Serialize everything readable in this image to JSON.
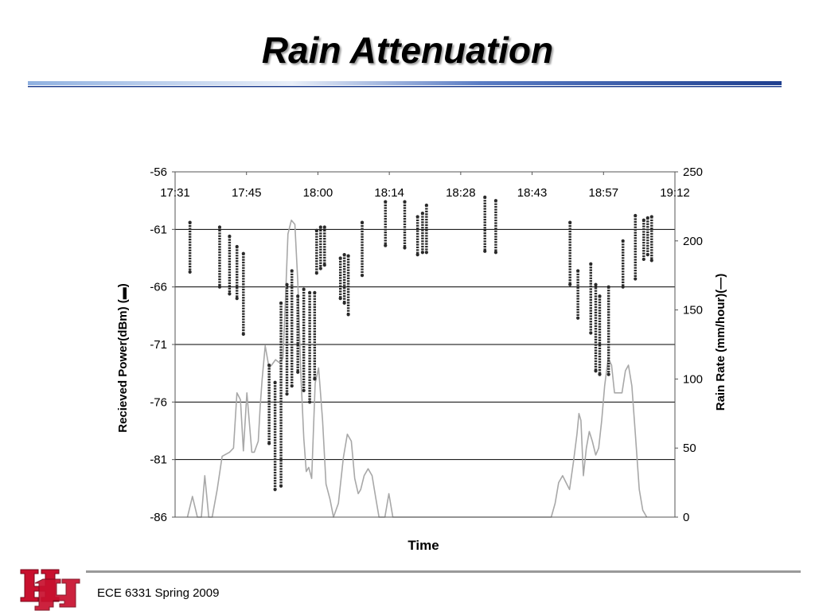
{
  "slide": {
    "title": "Rain Attenuation",
    "footer": "ECE 6331 Spring 2009",
    "logo_text": "UH"
  },
  "colors": {
    "rule_dark": "#1f3f8f",
    "rule_light": "#8fb0e0",
    "logo_red": "#c8102e",
    "points": "#2a2a2a",
    "rain_line": "#a8a8a8",
    "grid": "#000000"
  },
  "chart_data": {
    "type": "scatter",
    "xlabel": "Time",
    "ylabel": "Recieved Power(dBm) (▬)",
    "y2label": "Rain Rate (mm/hour)(—)",
    "x_tick_labels": [
      "17:31",
      "17:45",
      "18:00",
      "18:14",
      "18:28",
      "18:43",
      "18:57",
      "19:12"
    ],
    "xlim_minutes": [
      0,
      101
    ],
    "ylim": [
      -86,
      -56
    ],
    "y_ticks": [
      -56,
      -61,
      -66,
      -71,
      -76,
      -81,
      -86
    ],
    "y2lim": [
      0,
      250
    ],
    "y2_ticks": [
      250,
      200,
      150,
      100,
      50,
      0
    ],
    "grid": "horizontal",
    "series": [
      {
        "kind": "scatter",
        "axis": "left",
        "columns": [
          {
            "t": 3.0,
            "top": -60.4,
            "bottom": -64.7
          },
          {
            "t": 9.0,
            "top": -60.8,
            "bottom": -66.0
          },
          {
            "t": 11.0,
            "top": -61.6,
            "bottom": -66.6
          },
          {
            "t": 12.5,
            "top": -62.5,
            "bottom": -67.0
          },
          {
            "t": 13.8,
            "top": -63.1,
            "bottom": -70.1
          },
          {
            "t": 19.0,
            "top": -72.8,
            "bottom": -79.6
          },
          {
            "t": 20.2,
            "top": -74.3,
            "bottom": -83.6
          },
          {
            "t": 21.4,
            "top": -67.4,
            "bottom": -83.3
          },
          {
            "t": 22.6,
            "top": -65.8,
            "bottom": -75.3
          },
          {
            "t": 23.6,
            "top": -64.6,
            "bottom": -74.6
          },
          {
            "t": 24.8,
            "top": -66.8,
            "bottom": -73.4
          },
          {
            "t": 26.0,
            "top": -66.2,
            "bottom": -75.0
          },
          {
            "t": 27.2,
            "top": -66.5,
            "bottom": -76.0
          },
          {
            "t": 28.2,
            "top": -66.5,
            "bottom": -74.0
          },
          {
            "t": 28.6,
            "top": -61.1,
            "bottom": -64.8
          },
          {
            "t": 29.4,
            "top": -60.8,
            "bottom": -64.4
          },
          {
            "t": 30.2,
            "top": -60.8,
            "bottom": -64.1
          },
          {
            "t": 33.4,
            "top": -63.5,
            "bottom": -67.0
          },
          {
            "t": 34.2,
            "top": -63.2,
            "bottom": -67.4
          },
          {
            "t": 35.0,
            "top": -63.3,
            "bottom": -68.4
          },
          {
            "t": 37.8,
            "top": -60.4,
            "bottom": -65.0
          },
          {
            "t": 42.5,
            "top": -58.6,
            "bottom": -62.4
          },
          {
            "t": 46.4,
            "top": -58.6,
            "bottom": -62.6
          },
          {
            "t": 49.0,
            "top": -59.9,
            "bottom": -63.2
          },
          {
            "t": 50.0,
            "top": -59.6,
            "bottom": -63.0
          },
          {
            "t": 50.8,
            "top": -58.9,
            "bottom": -63.0
          },
          {
            "t": 62.6,
            "top": -58.2,
            "bottom": -62.9
          },
          {
            "t": 64.8,
            "top": -58.5,
            "bottom": -63.0
          },
          {
            "t": 79.8,
            "top": -60.4,
            "bottom": -65.8
          },
          {
            "t": 81.4,
            "top": -64.6,
            "bottom": -68.7
          },
          {
            "t": 84.0,
            "top": -64.0,
            "bottom": -70.0
          },
          {
            "t": 85.0,
            "top": -65.8,
            "bottom": -73.3
          },
          {
            "t": 85.8,
            "top": -66.8,
            "bottom": -73.6
          },
          {
            "t": 87.6,
            "top": -66.0,
            "bottom": -73.6
          },
          {
            "t": 90.5,
            "top": -62.0,
            "bottom": -66.0
          },
          {
            "t": 93.0,
            "top": -59.8,
            "bottom": -65.3
          },
          {
            "t": 94.7,
            "top": -60.2,
            "bottom": -63.6
          },
          {
            "t": 95.5,
            "top": -60.0,
            "bottom": -63.2
          },
          {
            "t": 96.3,
            "top": -59.9,
            "bottom": -63.7
          }
        ]
      },
      {
        "kind": "line",
        "axis": "right",
        "points": [
          [
            2.5,
            0
          ],
          [
            3.5,
            15
          ],
          [
            4.5,
            0
          ],
          [
            5.3,
            0
          ],
          [
            6.0,
            30
          ],
          [
            6.8,
            0
          ],
          [
            7.5,
            0
          ],
          [
            8.5,
            20
          ],
          [
            9.5,
            44
          ],
          [
            11.0,
            47
          ],
          [
            11.8,
            50
          ],
          [
            12.5,
            90
          ],
          [
            13.2,
            85
          ],
          [
            13.8,
            48
          ],
          [
            14.5,
            90
          ],
          [
            15.5,
            47
          ],
          [
            16.0,
            47
          ],
          [
            16.8,
            55
          ],
          [
            17.2,
            80
          ],
          [
            17.6,
            100
          ],
          [
            18.2,
            124
          ],
          [
            19.0,
            108
          ],
          [
            19.5,
            110
          ],
          [
            20.3,
            114
          ],
          [
            21.0,
            112
          ],
          [
            21.8,
            115
          ],
          [
            22.3,
            158
          ],
          [
            22.8,
            205
          ],
          [
            23.5,
            215
          ],
          [
            24.2,
            212
          ],
          [
            24.8,
            170
          ],
          [
            25.4,
            105
          ],
          [
            26.0,
            57
          ],
          [
            26.5,
            33
          ],
          [
            27.0,
            36
          ],
          [
            27.6,
            28
          ],
          [
            28.3,
            97
          ],
          [
            29.0,
            108
          ],
          [
            29.8,
            70
          ],
          [
            30.5,
            24
          ],
          [
            31.3,
            13
          ],
          [
            32.0,
            0
          ],
          [
            33.0,
            10
          ],
          [
            34.0,
            43
          ],
          [
            34.8,
            60
          ],
          [
            35.6,
            55
          ],
          [
            36.3,
            28
          ],
          [
            37.0,
            17
          ],
          [
            37.5,
            20
          ],
          [
            38.2,
            30
          ],
          [
            39.0,
            35
          ],
          [
            39.8,
            30
          ],
          [
            40.5,
            15
          ],
          [
            41.2,
            0
          ],
          [
            41.8,
            0
          ],
          [
            42.4,
            0
          ],
          [
            43.2,
            17
          ],
          [
            44.0,
            0
          ],
          [
            44.6,
            0
          ],
          [
            76.0,
            0
          ],
          [
            76.8,
            10
          ],
          [
            77.5,
            25
          ],
          [
            78.3,
            30
          ],
          [
            79.0,
            25
          ],
          [
            79.7,
            20
          ],
          [
            80.5,
            40
          ],
          [
            81.2,
            60
          ],
          [
            81.6,
            75
          ],
          [
            82.0,
            70
          ],
          [
            82.5,
            30
          ],
          [
            83.1,
            50
          ],
          [
            83.7,
            62
          ],
          [
            84.3,
            55
          ],
          [
            85.0,
            45
          ],
          [
            85.6,
            50
          ],
          [
            86.2,
            70
          ],
          [
            86.8,
            95
          ],
          [
            87.5,
            115
          ],
          [
            88.2,
            110
          ],
          [
            88.8,
            90
          ],
          [
            89.5,
            90
          ],
          [
            90.3,
            90
          ],
          [
            91.0,
            106
          ],
          [
            91.6,
            110
          ],
          [
            92.3,
            95
          ],
          [
            93.0,
            60
          ],
          [
            93.8,
            20
          ],
          [
            94.5,
            5
          ],
          [
            95.3,
            0
          ]
        ]
      }
    ]
  }
}
